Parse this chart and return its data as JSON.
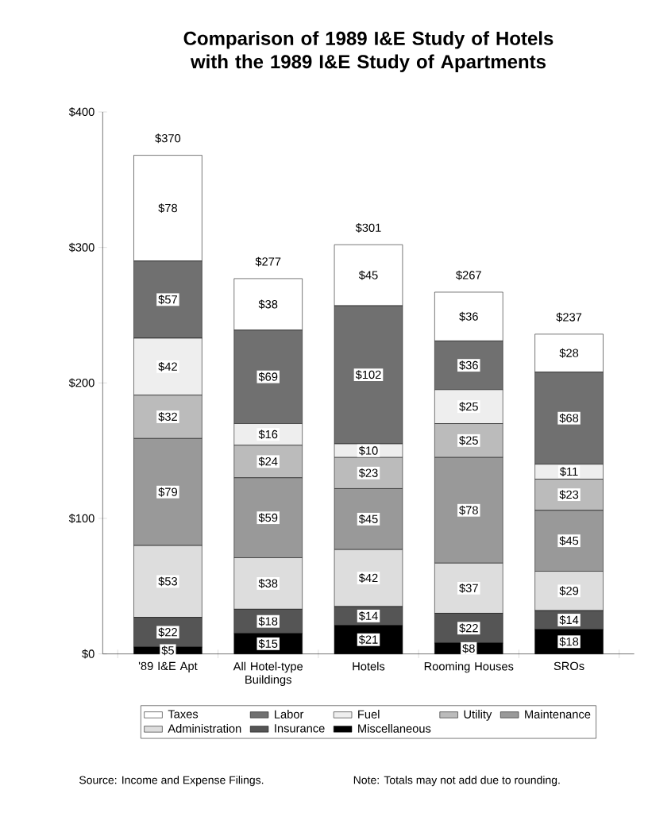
{
  "chart_data": {
    "type": "bar",
    "stacked": true,
    "title": "Comparison of 1989 I&E Study of Hotels with the 1989 I&E Study of Apartments",
    "categories": [
      "'89 I&E Apt",
      "All Hotel-type Buildings",
      "Hotels",
      "Rooming Houses",
      "SROs"
    ],
    "series": [
      {
        "name": "Miscellaneous",
        "color": "#000000",
        "values": [
          5,
          15,
          21,
          8,
          18
        ],
        "value_labels": [
          "$5",
          "$15",
          "$21",
          "$8",
          "$18"
        ]
      },
      {
        "name": "Insurance",
        "color": "#555555",
        "values": [
          22,
          18,
          14,
          22,
          14
        ],
        "value_labels": [
          "$22",
          "$18",
          "$14",
          "$22",
          "$14"
        ]
      },
      {
        "name": "Administration",
        "color": "#dddddd",
        "values": [
          53,
          38,
          42,
          37,
          29
        ],
        "value_labels": [
          "$53",
          "$38",
          "$42",
          "$37",
          "$29"
        ]
      },
      {
        "name": "Maintenance",
        "color": "#999999",
        "values": [
          79,
          59,
          45,
          78,
          45
        ],
        "value_labels": [
          "$79",
          "$59",
          "$45",
          "$78",
          "$45"
        ]
      },
      {
        "name": "Utility",
        "color": "#bbbbbb",
        "values": [
          32,
          24,
          23,
          25,
          23
        ],
        "value_labels": [
          "$32",
          "$24",
          "$23",
          "$25",
          "$23"
        ]
      },
      {
        "name": "Fuel",
        "color": "#eeeeee",
        "values": [
          42,
          16,
          10,
          25,
          11
        ],
        "value_labels": [
          "$42",
          "$16",
          "$10",
          "$25",
          "$11"
        ]
      },
      {
        "name": "Labor",
        "color": "#707070",
        "values": [
          57,
          69,
          102,
          36,
          68
        ],
        "value_labels": [
          "$57",
          "$69",
          "$102",
          "$36",
          "$68"
        ]
      },
      {
        "name": "Taxes",
        "color": "#ffffff",
        "values": [
          78,
          38,
          45,
          36,
          28
        ],
        "value_labels": [
          "$78",
          "$38",
          "$45",
          "$36",
          "$28"
        ]
      }
    ],
    "totals": [
      "$370",
      "$277",
      "$301",
      "$267",
      "$237"
    ],
    "ylim": [
      0,
      400
    ],
    "yticks": [
      {
        "value": 0,
        "label": "$0"
      },
      {
        "value": 100,
        "label": "$100"
      },
      {
        "value": 200,
        "label": "$200"
      },
      {
        "value": 300,
        "label": "$300"
      },
      {
        "value": 400,
        "label": "$400"
      }
    ],
    "grid": false,
    "legend": "bottom",
    "annotations": [
      "Source: Income and Expense Filings.",
      "Note: Totals may not add due to rounding."
    ]
  }
}
